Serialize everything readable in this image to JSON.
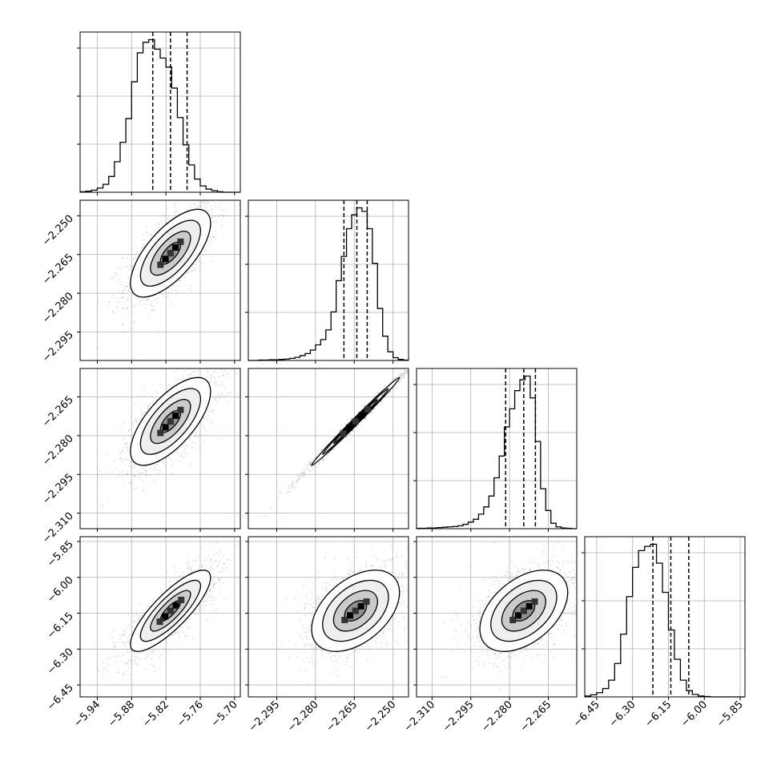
{
  "chart_data": {
    "type": "corner",
    "grid": true,
    "parameters": [
      {
        "index": 0,
        "range": [
          -5.97,
          -5.69
        ],
        "ticks": [
          "−5.94",
          "−5.88",
          "−5.82",
          "−5.76",
          "−5.70"
        ],
        "tick_values": [
          -5.94,
          -5.88,
          -5.82,
          -5.76,
          -5.7
        ],
        "quantiles": [
          -5.843,
          -5.812,
          -5.783
        ],
        "histogram": {
          "bin_edges": [
            -5.97,
            -5.96,
            -5.95,
            -5.94,
            -5.93,
            -5.92,
            -5.91,
            -5.9,
            -5.89,
            -5.88,
            -5.87,
            -5.86,
            -5.85,
            -5.84,
            -5.83,
            -5.82,
            -5.81,
            -5.8,
            -5.79,
            -5.78,
            -5.77,
            -5.76,
            -5.75,
            -5.74,
            -5.73,
            -5.72,
            -5.71,
            -5.7,
            -5.69
          ],
          "counts": [
            1,
            2,
            4,
            8,
            15,
            30,
            58,
            95,
            140,
            210,
            265,
            285,
            290,
            272,
            255,
            238,
            198,
            142,
            90,
            52,
            25,
            12,
            6,
            3,
            1,
            0,
            0,
            0
          ]
        }
      },
      {
        "index": 1,
        "range": [
          -2.306,
          -2.244
        ],
        "ticks": [
          "−2.295",
          "−2.280",
          "−2.265",
          "−2.250"
        ],
        "tick_values": [
          -2.295,
          -2.28,
          -2.265,
          -2.25
        ],
        "quantiles": [
          -2.269,
          -2.264,
          -2.26
        ],
        "histogram": {
          "bin_edges": [
            -2.306,
            -2.304,
            -2.302,
            -2.3,
            -2.298,
            -2.296,
            -2.294,
            -2.292,
            -2.29,
            -2.288,
            -2.286,
            -2.284,
            -2.282,
            -2.28,
            -2.278,
            -2.276,
            -2.274,
            -2.272,
            -2.27,
            -2.268,
            -2.266,
            -2.264,
            -2.262,
            -2.26,
            -2.258,
            -2.256,
            -2.254,
            -2.252,
            -2.25,
            -2.248,
            -2.246,
            -2.244
          ],
          "counts": [
            0,
            0,
            1,
            1,
            2,
            2,
            3,
            4,
            6,
            9,
            14,
            20,
            30,
            45,
            60,
            88,
            140,
            230,
            300,
            380,
            420,
            440,
            430,
            380,
            280,
            150,
            70,
            25,
            8,
            3,
            1
          ]
        }
      },
      {
        "index": 2,
        "range": [
          -2.316,
          -2.254
        ],
        "ticks": [
          "−2.310",
          "−2.295",
          "−2.280",
          "−2.265"
        ],
        "tick_values": [
          -2.31,
          -2.295,
          -2.28,
          -2.265
        ],
        "quantiles": [
          -2.2815,
          -2.2745,
          -2.27
        ],
        "histogram": {
          "bin_edges": [
            -2.316,
            -2.314,
            -2.312,
            -2.31,
            -2.308,
            -2.306,
            -2.304,
            -2.302,
            -2.3,
            -2.298,
            -2.296,
            -2.294,
            -2.292,
            -2.29,
            -2.288,
            -2.286,
            -2.284,
            -2.282,
            -2.28,
            -2.278,
            -2.276,
            -2.274,
            -2.272,
            -2.27,
            -2.268,
            -2.266,
            -2.264,
            -2.262,
            -2.26,
            -2.258,
            -2.256,
            -2.254
          ],
          "counts": [
            1,
            1,
            2,
            2,
            3,
            4,
            5,
            6,
            8,
            12,
            18,
            26,
            40,
            60,
            90,
            140,
            200,
            280,
            330,
            380,
            410,
            420,
            360,
            240,
            110,
            50,
            15,
            5,
            2,
            1,
            0
          ]
        }
      },
      {
        "index": 3,
        "range": [
          -6.5,
          -5.83
        ],
        "ticks": [
          "−6.45",
          "−6.30",
          "−6.15",
          "−6.00",
          "−5.85"
        ],
        "tick_values": [
          -6.45,
          -6.3,
          -6.15,
          -6.0,
          -5.85
        ],
        "quantiles": [
          -6.215,
          -6.14,
          -6.065
        ],
        "histogram": {
          "bin_edges": [
            -6.5,
            -6.475,
            -6.45,
            -6.425,
            -6.4,
            -6.375,
            -6.35,
            -6.325,
            -6.3,
            -6.275,
            -6.25,
            -6.225,
            -6.2,
            -6.175,
            -6.15,
            -6.125,
            -6.1,
            -6.075,
            -6.05,
            -6.025,
            -6.0,
            -5.975,
            -5.95,
            -5.925,
            -5.9,
            -5.875,
            -5.85,
            -5.83
          ],
          "counts": [
            2,
            5,
            10,
            20,
            40,
            80,
            150,
            240,
            310,
            350,
            360,
            365,
            320,
            250,
            160,
            90,
            40,
            15,
            6,
            2,
            1,
            0,
            0,
            0,
            0,
            0,
            0
          ]
        }
      }
    ],
    "pairs": [
      {
        "row": 1,
        "col": 0,
        "mean": [
          -5.812,
          -2.2645
        ],
        "sd": [
          0.035,
          0.0085
        ],
        "corr": 0.68
      },
      {
        "row": 2,
        "col": 0,
        "mean": [
          -5.812,
          -2.2745
        ],
        "sd": [
          0.035,
          0.0085
        ],
        "corr": 0.68
      },
      {
        "row": 2,
        "col": 1,
        "mean": [
          -2.2645,
          -2.2745
        ],
        "sd": [
          0.0085,
          0.0085
        ],
        "corr": 0.995
      },
      {
        "row": 3,
        "col": 0,
        "mean": [
          -5.812,
          -6.14
        ],
        "sd": [
          0.035,
          0.085
        ],
        "corr": 0.82
      },
      {
        "row": 3,
        "col": 1,
        "mean": [
          -2.2645,
          -6.14
        ],
        "sd": [
          0.0085,
          0.085
        ],
        "corr": 0.45
      },
      {
        "row": 3,
        "col": 2,
        "mean": [
          -2.2745,
          -6.14
        ],
        "sd": [
          0.0085,
          0.085
        ],
        "corr": 0.45
      }
    ],
    "contour_levels_sigma": [
      0.5,
      1.0,
      1.5,
      2.0
    ]
  }
}
